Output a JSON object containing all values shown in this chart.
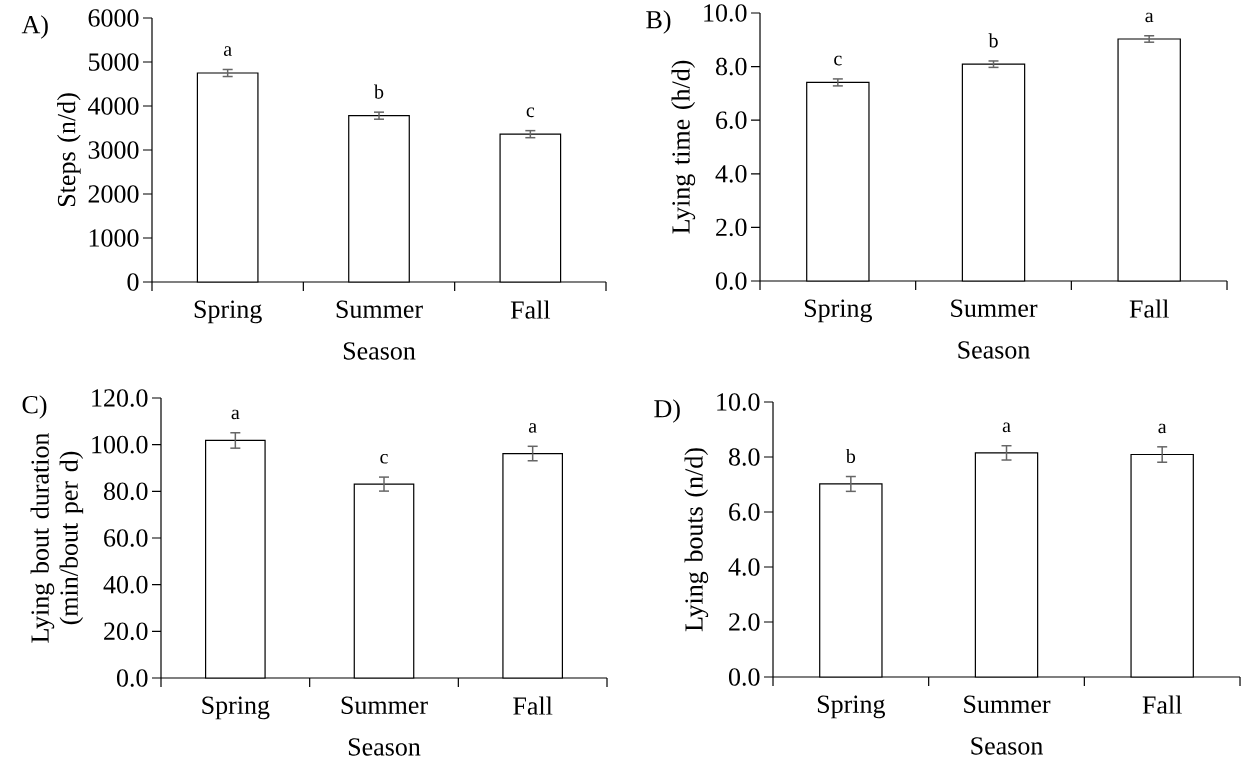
{
  "chart_data": [
    {
      "type": "bar",
      "title": "A)",
      "xlabel": "Season",
      "ylabel": "Steps (n/d)",
      "categories": [
        "Spring",
        "Summer",
        "Fall"
      ],
      "values": [
        4750,
        3780,
        3360
      ],
      "errors": [
        80,
        80,
        80
      ],
      "color": "#ffffff",
      "ylim": [
        0,
        6000
      ],
      "yticks": [
        0,
        1000,
        2000,
        3000,
        4000,
        5000,
        6000
      ],
      "annotations": [
        "a",
        "b",
        "c"
      ]
    },
    {
      "type": "bar",
      "title": "B)",
      "xlabel": "Season",
      "ylabel": "Lying time (h/d)",
      "categories": [
        "Spring",
        "Summer",
        "Fall"
      ],
      "values": [
        7.41,
        8.09,
        9.03
      ],
      "errors": [
        0.13,
        0.12,
        0.12
      ],
      "color": "#ffffff",
      "ylim": [
        0,
        10
      ],
      "yticks": [
        {
          "value": 0,
          "label": "0.0"
        },
        {
          "value": 2,
          "label": "2.0"
        },
        {
          "value": 4,
          "label": "4.0"
        },
        {
          "value": 6,
          "label": "6.0"
        },
        {
          "value": 8,
          "label": "8.0"
        },
        {
          "value": 10,
          "label": "10.0"
        }
      ],
      "annotations": [
        "c",
        "b",
        "a"
      ]
    },
    {
      "type": "bar",
      "title": "C)",
      "xlabel": "Season",
      "ylabel": "Lying bout duration (min/bout per d)",
      "categories": [
        "Spring",
        "Summer",
        "Fall"
      ],
      "values": [
        101.8,
        83.1,
        96.2
      ],
      "errors": [
        3.3,
        3.0,
        3.1
      ],
      "color": "#ffffff",
      "ylim": [
        0,
        120
      ],
      "yticks": [
        {
          "value": 0,
          "label": "0.0"
        },
        {
          "value": 20,
          "label": "20.0"
        },
        {
          "value": 40,
          "label": "40.0"
        },
        {
          "value": 60,
          "label": "60.0"
        },
        {
          "value": 80,
          "label": "80.0"
        },
        {
          "value": 100,
          "label": "100.0"
        },
        {
          "value": 120,
          "label": "120.0"
        }
      ],
      "annotations": [
        "a",
        "c",
        "a"
      ]
    },
    {
      "type": "bar",
      "title": "D)",
      "xlabel": "Season",
      "ylabel": "Lying bouts (n/d)",
      "categories": [
        "Spring",
        "Summer",
        "Fall"
      ],
      "values": [
        7.02,
        8.15,
        8.09
      ],
      "errors": [
        0.27,
        0.26,
        0.28
      ],
      "color": "#ffffff",
      "ylim": [
        0,
        10
      ],
      "yticks": [
        {
          "value": 0,
          "label": "0.0"
        },
        {
          "value": 2,
          "label": "2.0"
        },
        {
          "value": 4,
          "label": "4.0"
        },
        {
          "value": 6,
          "label": "6.0"
        },
        {
          "value": 8,
          "label": "8.0"
        },
        {
          "value": 10,
          "label": "10.0"
        }
      ],
      "annotations": [
        "b",
        "a",
        "a"
      ]
    }
  ]
}
